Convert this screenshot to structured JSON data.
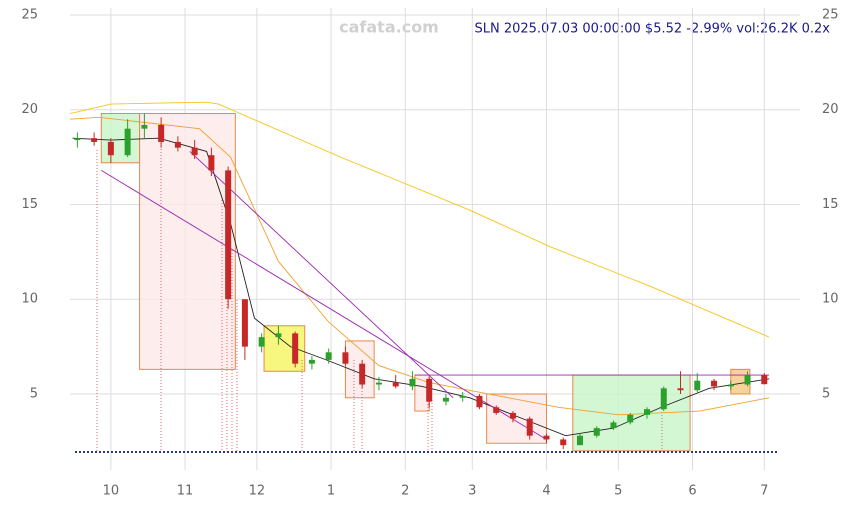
{
  "chart_data": {
    "type": "candlestick",
    "title": "SLN 2025.07.03 00:00:00 $5.52 -2.99% vol:26.2K 0.2x",
    "watermark": "cafata.com",
    "x": [
      -14,
      -7,
      0,
      7,
      14,
      21,
      28,
      35,
      42,
      49,
      56,
      63,
      70,
      77,
      84,
      91,
      98,
      105,
      112,
      119,
      126,
      133,
      140,
      147,
      154,
      161,
      168,
      175,
      182,
      189,
      196,
      203,
      210,
      217,
      224,
      231,
      238,
      245,
      252,
      259,
      266,
      273
    ],
    "open": [
      18.4,
      18.5,
      18.3,
      17.6,
      19.0,
      19.2,
      18.3,
      18.0,
      17.6,
      16.8,
      10.0,
      7.5,
      8.0,
      8.2,
      6.6,
      6.8,
      7.2,
      6.6,
      5.5,
      5.6,
      5.4,
      5.8,
      4.6,
      4.8,
      4.9,
      4.3,
      4.0,
      3.7,
      2.8,
      2.6,
      2.3,
      2.8,
      3.2,
      3.5,
      3.9,
      4.2,
      5.3,
      5.2,
      5.7,
      5.4,
      5.5,
      6.0
    ],
    "high": [
      18.8,
      18.8,
      18.5,
      19.5,
      19.8,
      19.6,
      18.6,
      18.4,
      18.0,
      17.0,
      10.0,
      8.2,
      8.6,
      8.3,
      7.0,
      7.4,
      7.5,
      6.8,
      5.9,
      6.0,
      6.2,
      5.9,
      5.0,
      5.1,
      5.0,
      4.4,
      4.1,
      3.8,
      2.9,
      2.7,
      2.9,
      3.3,
      3.6,
      4.0,
      4.3,
      5.4,
      6.2,
      6.1,
      5.8,
      5.7,
      6.2,
      6.1
    ],
    "low": [
      18.0,
      18.1,
      17.2,
      17.5,
      18.5,
      18.0,
      17.8,
      17.4,
      16.5,
      9.5,
      6.8,
      7.2,
      7.6,
      6.4,
      6.3,
      6.6,
      6.5,
      5.3,
      5.2,
      5.3,
      5.2,
      4.3,
      4.4,
      4.6,
      4.2,
      3.9,
      3.5,
      2.6,
      2.4,
      2.1,
      2.3,
      2.7,
      3.1,
      3.4,
      3.7,
      4.1,
      5.0,
      5.1,
      5.2,
      5.2,
      5.4,
      5.5
    ],
    "close": [
      18.5,
      18.3,
      17.6,
      19.0,
      19.2,
      18.3,
      18.0,
      17.6,
      16.8,
      10.0,
      7.5,
      8.0,
      8.2,
      6.6,
      6.8,
      7.2,
      6.6,
      5.5,
      5.6,
      5.4,
      5.8,
      4.6,
      4.8,
      4.9,
      4.3,
      4.0,
      3.7,
      2.8,
      2.6,
      2.3,
      2.8,
      3.2,
      3.5,
      3.9,
      4.2,
      5.3,
      5.2,
      5.7,
      5.4,
      5.5,
      6.0,
      5.52
    ],
    "up_color": "#2ca02c",
    "down_color": "#c62828",
    "xlim": [
      -20,
      285
    ],
    "xticks": [
      {
        "value": 0,
        "label": "10"
      },
      {
        "value": 31,
        "label": "11"
      },
      {
        "value": 61,
        "label": "12"
      },
      {
        "value": 92,
        "label": "1"
      },
      {
        "value": 123,
        "label": "2"
      },
      {
        "value": 151,
        "label": "3"
      },
      {
        "value": 182,
        "label": "4"
      },
      {
        "value": 212,
        "label": "5"
      },
      {
        "value": 243,
        "label": "6"
      },
      {
        "value": 273,
        "label": "7"
      }
    ],
    "ylim": [
      1,
      25.5
    ],
    "yticks": [
      5,
      10,
      15,
      20,
      25
    ],
    "grid": true,
    "lines": [
      {
        "color": "#f5c518",
        "x": [
          -17,
          0,
          40,
          45,
          54,
          96,
          150,
          183,
          225,
          275
        ],
        "values": [
          19.8,
          20.3,
          20.4,
          20.3,
          19.8,
          17.5,
          14.7,
          12.8,
          10.7,
          8.0
        ]
      },
      {
        "color": "#f0a030",
        "x": [
          -17,
          -5,
          37,
          50,
          70,
          91,
          112,
          133,
          162,
          187,
          212,
          246,
          275
        ],
        "values": [
          19.5,
          19.6,
          19.0,
          17.5,
          12.0,
          8.8,
          6.5,
          5.6,
          4.9,
          4.3,
          3.9,
          4.1,
          4.8
        ]
      },
      {
        "color": "#222222",
        "x": [
          -16,
          0,
          20,
          40,
          50,
          60,
          75,
          90,
          110,
          130,
          150,
          170,
          190,
          210,
          230,
          250,
          275
        ],
        "values": [
          18.5,
          18.4,
          18.5,
          17.8,
          14.0,
          9.0,
          7.5,
          6.8,
          5.8,
          5.4,
          4.8,
          3.8,
          2.8,
          3.2,
          4.3,
          5.3,
          5.8
        ]
      }
    ],
    "boxes": [
      {
        "x": [
          -4,
          12
        ],
        "y": [
          17.2,
          19.8
        ],
        "color": "#c8f5c8"
      },
      {
        "x": [
          12,
          52
        ],
        "y": [
          6.3,
          19.8
        ],
        "color": "#fde8e8"
      },
      {
        "x": [
          64,
          81
        ],
        "y": [
          6.2,
          8.6
        ],
        "color": "#f5f560"
      },
      {
        "x": [
          98,
          110
        ],
        "y": [
          4.8,
          7.8
        ],
        "color": "#fde8e8"
      },
      {
        "x": [
          127,
          133
        ],
        "y": [
          4.1,
          6.0
        ],
        "color": "#fde8e8"
      },
      {
        "x": [
          157,
          182
        ],
        "y": [
          2.4,
          5.0
        ],
        "color": "#fde8e8"
      },
      {
        "x": [
          193,
          242
        ],
        "y": [
          2.0,
          6.0
        ],
        "color": "#c8f5c8"
      },
      {
        "x": [
          259,
          267
        ],
        "y": [
          5.0,
          6.3
        ],
        "color": "#f5c880"
      }
    ],
    "trend_lines": [
      {
        "color": "#9c27b0",
        "x": [
          -4,
          182
        ],
        "values": [
          16.8,
          2.6
        ]
      },
      {
        "color": "#9c27b0",
        "x": [
          33,
          143
        ],
        "values": [
          17.8,
          4.8
        ]
      },
      {
        "color": "#9c27b0",
        "x": [
          127,
          275
        ],
        "values": [
          6.0,
          6.0
        ]
      }
    ]
  }
}
